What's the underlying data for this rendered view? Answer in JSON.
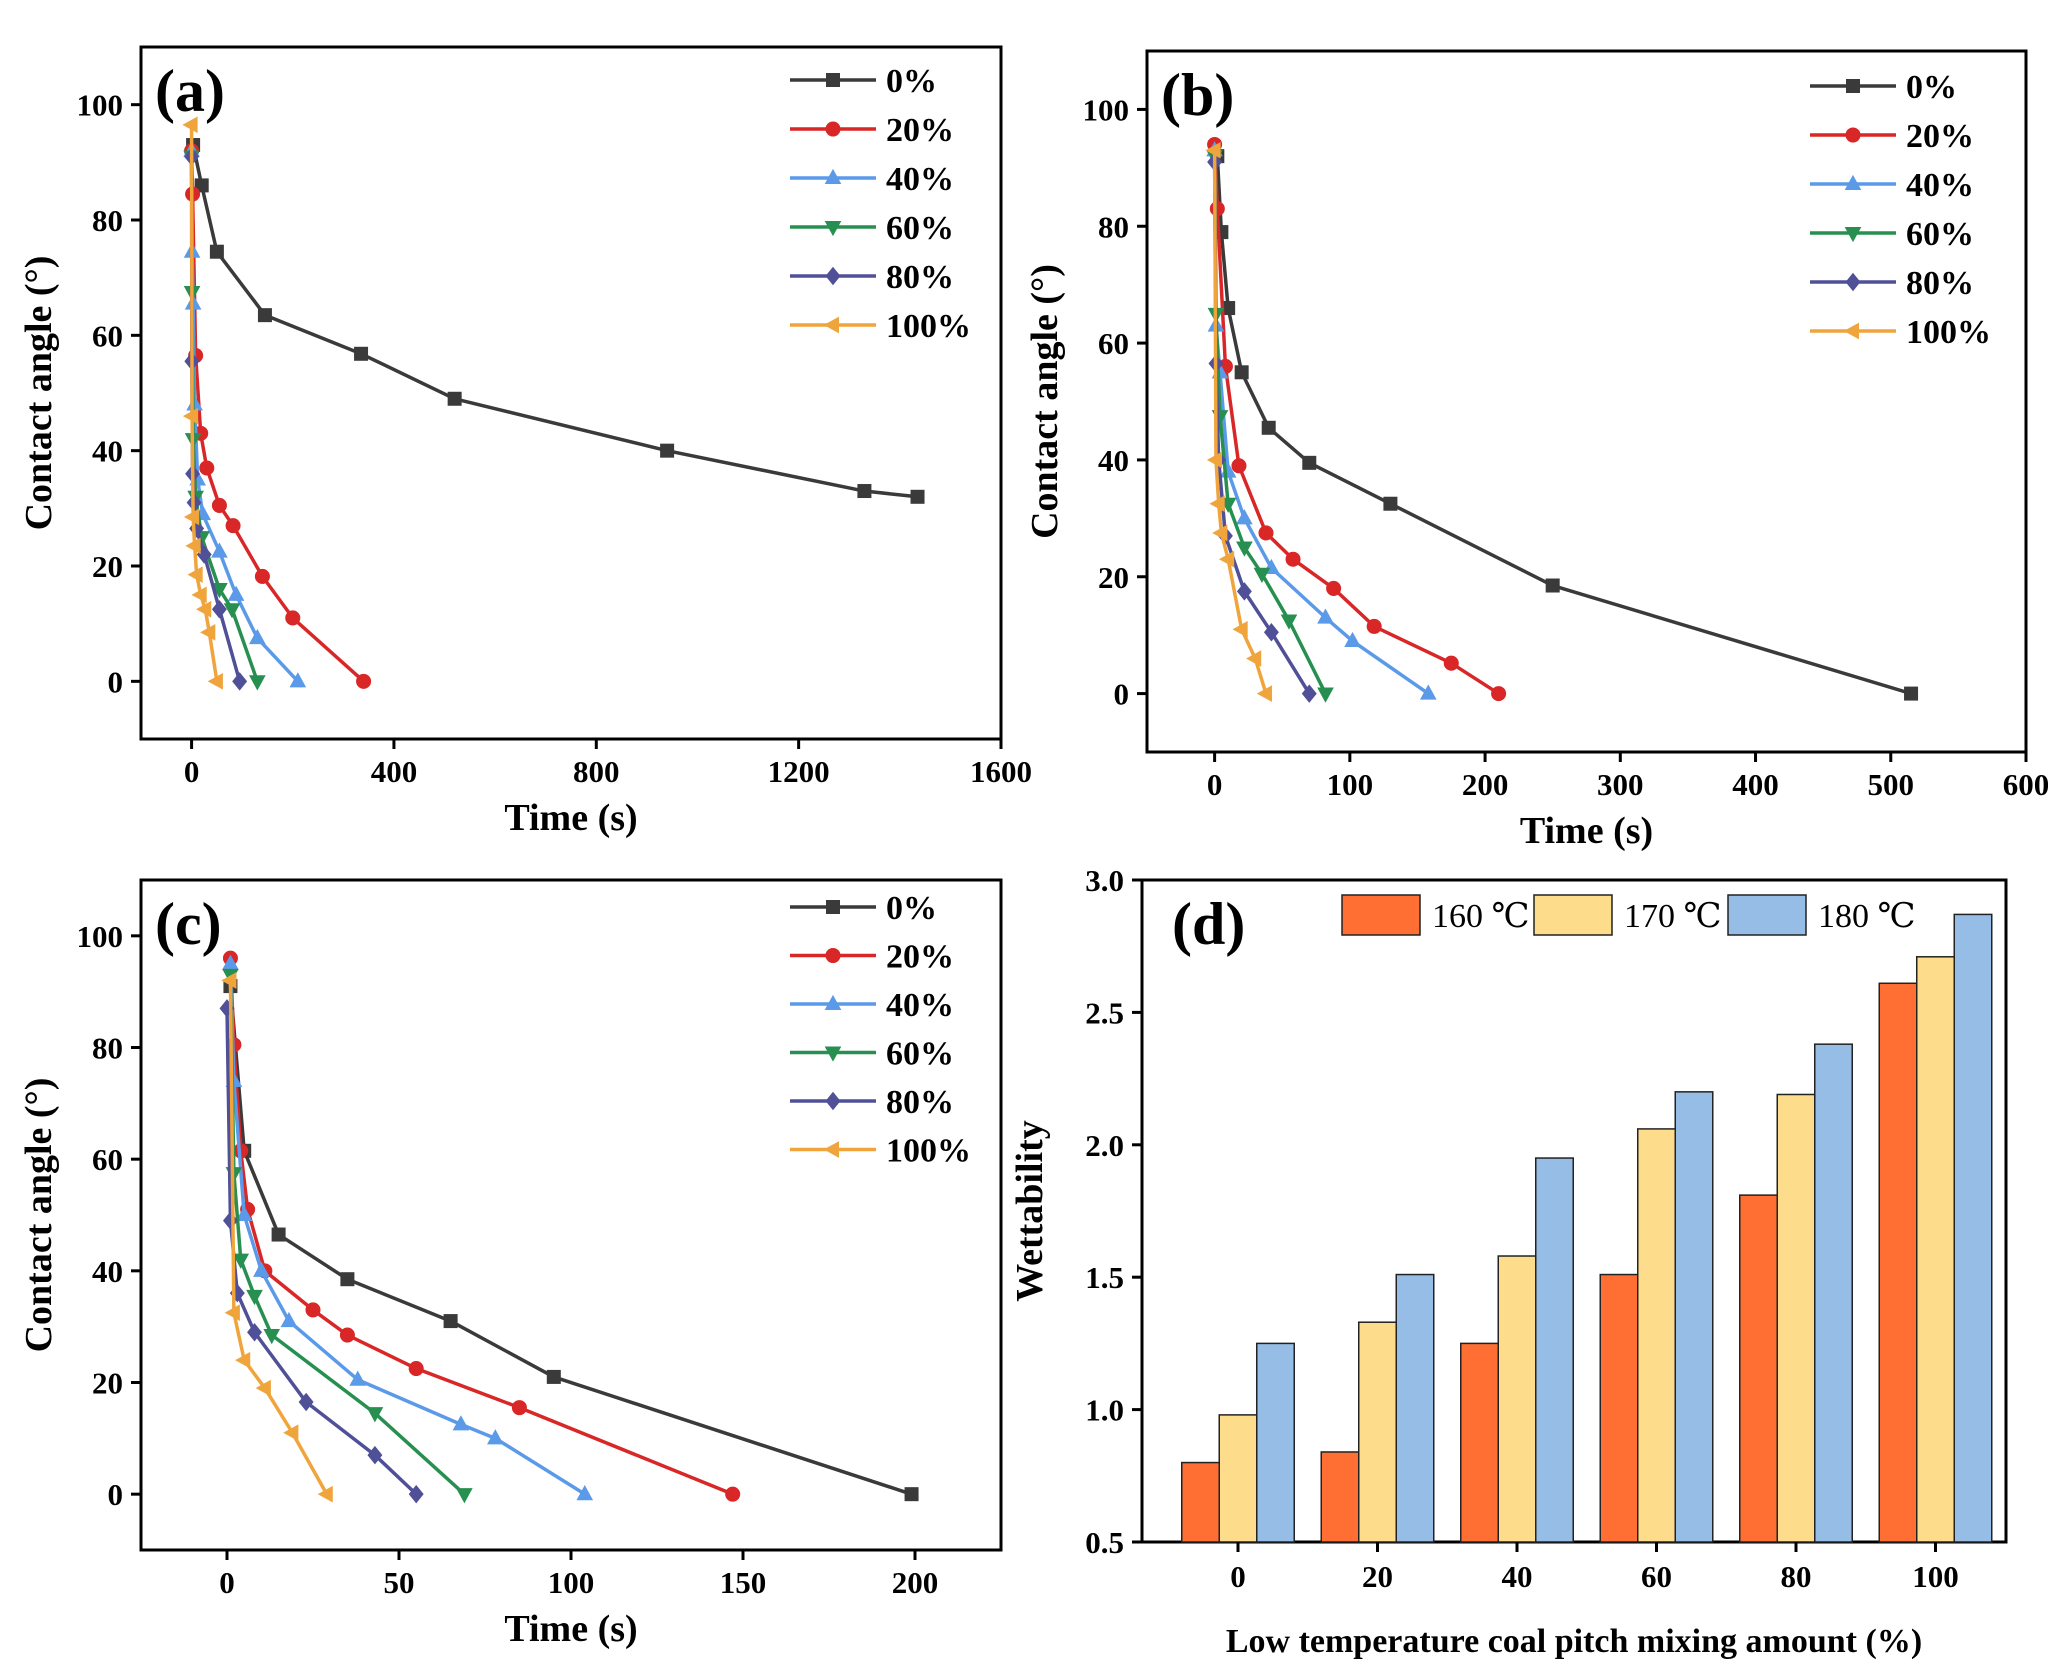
{
  "chart_data": [
    {
      "panel": "(a)",
      "type": "line",
      "xlabel": "Time (s)",
      "ylabel": "Contact angle (°)",
      "xlim": [
        -100,
        1600
      ],
      "ylim": [
        -10,
        110
      ],
      "xticks": [
        0,
        400,
        800,
        1200,
        1600
      ],
      "yticks": [
        0,
        20,
        40,
        60,
        80,
        100
      ],
      "legend_position": "top-right",
      "series": [
        {
          "name": "0%",
          "color": "#3a3a3a",
          "marker": "square",
          "x": [
            3,
            20,
            50,
            145,
            335,
            520,
            940,
            1330,
            1435
          ],
          "y": [
            93,
            86,
            74.5,
            63.5,
            56.8,
            49,
            40,
            33,
            32
          ]
        },
        {
          "name": "20%",
          "color": "#d92727",
          "marker": "circle",
          "x": [
            0,
            2,
            8,
            18,
            30,
            55,
            82,
            140,
            200,
            340
          ],
          "y": [
            92,
            84.5,
            56.5,
            43,
            37,
            30.5,
            27,
            18.2,
            11,
            0
          ]
        },
        {
          "name": "40%",
          "color": "#5a9ae8",
          "marker": "triangle-up",
          "x": [
            0,
            1,
            3,
            6,
            12,
            22,
            55,
            88,
            130,
            210
          ],
          "y": [
            92,
            74.5,
            65.5,
            48,
            35,
            29,
            22.5,
            15,
            7.5,
            0
          ]
        },
        {
          "name": "60%",
          "color": "#279050",
          "marker": "triangle-down",
          "x": [
            0,
            1,
            3,
            8,
            20,
            55,
            80,
            130
          ],
          "y": [
            91,
            67.5,
            42,
            32,
            25,
            16,
            12.5,
            0
          ]
        },
        {
          "name": "80%",
          "color": "#505098",
          "marker": "diamond",
          "x": [
            0,
            0.5,
            2,
            5,
            10,
            25,
            55,
            95
          ],
          "y": [
            91,
            55.5,
            36,
            31,
            26.5,
            22,
            12.5,
            0
          ]
        },
        {
          "name": "100%",
          "color": "#f0a43c",
          "marker": "triangle-left",
          "x": [
            0,
            1,
            3,
            6,
            10,
            18,
            27,
            35,
            50
          ],
          "y": [
            96.5,
            46,
            28.5,
            23.5,
            18.5,
            15,
            12.5,
            8.5,
            0
          ]
        }
      ]
    },
    {
      "panel": "(b)",
      "type": "line",
      "xlabel": "Time (s)",
      "ylabel": "Contact angle (°)",
      "xlim": [
        -50,
        600
      ],
      "ylim": [
        -10,
        110
      ],
      "xticks": [
        0,
        100,
        200,
        300,
        400,
        500,
        600
      ],
      "yticks": [
        0,
        20,
        40,
        60,
        80,
        100
      ],
      "legend_position": "top-right",
      "series": [
        {
          "name": "0%",
          "color": "#3a3a3a",
          "marker": "square",
          "x": [
            2,
            5,
            10,
            20,
            40,
            70,
            130,
            250,
            515
          ],
          "y": [
            92,
            79,
            66,
            55,
            45.5,
            39.5,
            32.5,
            18.5,
            0
          ]
        },
        {
          "name": "20%",
          "color": "#d92727",
          "marker": "circle",
          "x": [
            0,
            2,
            8,
            18,
            38,
            58,
            88,
            118,
            175,
            210
          ],
          "y": [
            94,
            83,
            56,
            39,
            27.5,
            23,
            18,
            11.5,
            5.2,
            0
          ]
        },
        {
          "name": "40%",
          "color": "#5a9ae8",
          "marker": "triangle-up",
          "x": [
            0,
            1,
            4,
            10,
            22,
            42,
            82,
            102,
            158
          ],
          "y": [
            93,
            63,
            55,
            38,
            30,
            21.5,
            13,
            9,
            0
          ]
        },
        {
          "name": "60%",
          "color": "#279050",
          "marker": "triangle-down",
          "x": [
            0,
            1,
            4,
            10,
            22,
            35,
            55,
            82
          ],
          "y": [
            92,
            65,
            47.5,
            32.5,
            25,
            20.5,
            12.5,
            0
          ]
        },
        {
          "name": "80%",
          "color": "#505098",
          "marker": "diamond",
          "x": [
            0,
            1,
            3,
            8,
            22,
            42,
            70
          ],
          "y": [
            91,
            56.5,
            40,
            27,
            17.5,
            10.5,
            0
          ]
        },
        {
          "name": "100%",
          "color": "#f0a43c",
          "marker": "triangle-left",
          "x": [
            0,
            1,
            3,
            5,
            10,
            20,
            30,
            38
          ],
          "y": [
            93,
            40,
            32.5,
            27.5,
            23,
            11,
            6,
            0
          ]
        }
      ]
    },
    {
      "panel": "(c)",
      "type": "line",
      "xlabel": "Time (s)",
      "ylabel": "Contact angle (°)",
      "xlim": [
        -25,
        225
      ],
      "ylim": [
        -10,
        110
      ],
      "xticks": [
        0,
        50,
        100,
        150,
        200
      ],
      "yticks": [
        0,
        20,
        40,
        60,
        80,
        100
      ],
      "legend_position": "top-right",
      "series": [
        {
          "name": "0%",
          "color": "#3a3a3a",
          "marker": "square",
          "x": [
            1,
            5,
            15,
            35,
            65,
            95,
            199
          ],
          "y": [
            91,
            61.5,
            46.5,
            38.5,
            31,
            21,
            0
          ]
        },
        {
          "name": "20%",
          "color": "#d92727",
          "marker": "circle",
          "x": [
            1,
            2,
            4,
            6,
            11,
            25,
            35,
            55,
            85,
            147
          ],
          "y": [
            96,
            80.5,
            61.5,
            51,
            40,
            33,
            28.5,
            22.5,
            15.5,
            0
          ]
        },
        {
          "name": "40%",
          "color": "#5a9ae8",
          "marker": "triangle-up",
          "x": [
            1,
            2,
            5,
            10,
            18,
            38,
            68,
            78,
            104
          ],
          "y": [
            95,
            74,
            50,
            40,
            31,
            20.5,
            12.5,
            10,
            0
          ]
        },
        {
          "name": "60%",
          "color": "#279050",
          "marker": "triangle-down",
          "x": [
            1,
            2,
            4,
            8,
            13,
            43,
            69
          ],
          "y": [
            93,
            57.5,
            42,
            35.5,
            28.5,
            14.5,
            0
          ]
        },
        {
          "name": "80%",
          "color": "#505098",
          "marker": "diamond",
          "x": [
            0,
            1,
            3,
            8,
            23,
            43,
            55
          ],
          "y": [
            87,
            49,
            36,
            29,
            16.5,
            7,
            0
          ]
        },
        {
          "name": "100%",
          "color": "#f0a43c",
          "marker": "triangle-left",
          "x": [
            1,
            2,
            5,
            11,
            19,
            29
          ],
          "y": [
            92,
            32.5,
            24,
            19,
            11,
            0
          ]
        }
      ]
    },
    {
      "panel": "(d)",
      "type": "bar",
      "xlabel": "Low temperature coal pitch mixing amount (%)",
      "ylabel": "Wettability",
      "ylim": [
        0.5,
        3.0
      ],
      "yticks": [
        0.5,
        1.0,
        1.5,
        2.0,
        2.5,
        3.0
      ],
      "categories": [
        "0",
        "20",
        "40",
        "60",
        "80",
        "100"
      ],
      "legend_position": "top",
      "series": [
        {
          "name": "160 ℃",
          "color": "#ff6f33",
          "values": [
            0.8,
            0.84,
            1.25,
            1.51,
            1.81,
            2.61
          ]
        },
        {
          "name": "170 ℃",
          "color": "#fddc8c",
          "values": [
            0.98,
            1.33,
            1.58,
            2.06,
            2.19,
            2.71
          ]
        },
        {
          "name": "180 ℃",
          "color": "#95bde6",
          "values": [
            1.25,
            1.51,
            1.95,
            2.2,
            2.38,
            2.87
          ]
        }
      ]
    }
  ]
}
